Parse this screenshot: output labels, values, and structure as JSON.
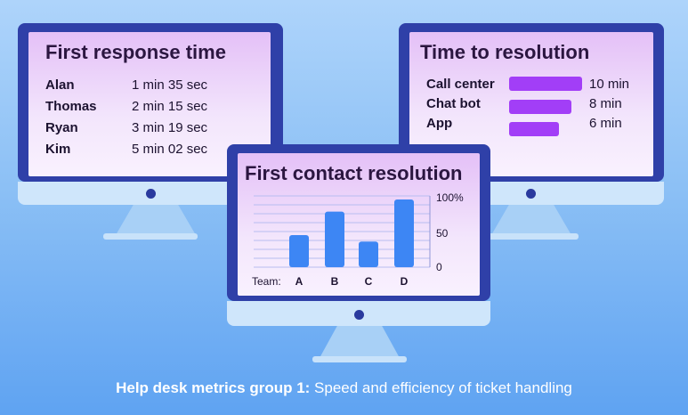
{
  "response_panel": {
    "title": "First response time",
    "rows": [
      {
        "name": "Alan",
        "value": "1 min 35 sec"
      },
      {
        "name": "Thomas",
        "value": "2 min 15 sec"
      },
      {
        "name": "Ryan",
        "value": "3 min 19 sec"
      },
      {
        "name": "Kim",
        "value": "5 min 02 sec"
      }
    ]
  },
  "resolution_panel": {
    "title": "Time to resolution",
    "rows": [
      {
        "name": "Call center",
        "value": "10 min"
      },
      {
        "name": "Chat bot",
        "value": "8 min"
      },
      {
        "name": "App",
        "value": "6 min"
      }
    ]
  },
  "contact_panel": {
    "title": "First contact resolution",
    "team_label": "Team:"
  },
  "chart_data": {
    "type": "bar",
    "categories": [
      "A",
      "B",
      "C",
      "D"
    ],
    "values": [
      45,
      78,
      36,
      95
    ],
    "ylim": [
      0,
      100
    ],
    "yticks": [
      "100%",
      "50",
      "0"
    ],
    "grid": true
  },
  "caption": {
    "bold": "Help desk metrics group 1:",
    "rest": " Speed and efficiency of ticket handling"
  },
  "colors": {
    "monitor_frame": "#2f40a8",
    "bar_blue": "#3d86f4",
    "bar_purple": "#a23ef7"
  }
}
